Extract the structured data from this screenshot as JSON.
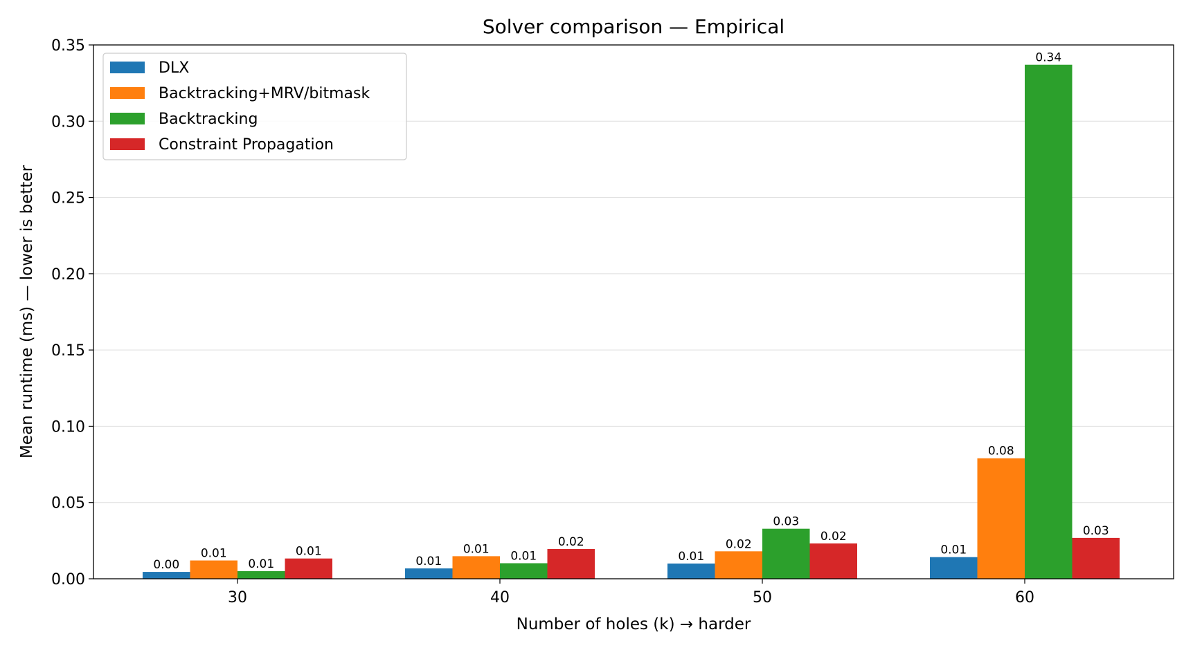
{
  "chart_data": {
    "type": "bar",
    "title": "Solver comparison — Empirical",
    "xlabel": "Number of holes (k) → harder",
    "ylabel": "Mean runtime (ms) — lower is better",
    "categories": [
      "30",
      "40",
      "50",
      "60"
    ],
    "ylim": [
      0,
      0.35
    ],
    "yticks": [
      "0.00",
      "0.05",
      "0.10",
      "0.15",
      "0.20",
      "0.25",
      "0.30",
      "0.35"
    ],
    "grid": "horizontal",
    "legend_position": "top-left",
    "series": [
      {
        "name": "DLX",
        "color": "#1f77b4",
        "values": [
          0.0045,
          0.0068,
          0.01,
          0.0142
        ],
        "labels": [
          "0.00",
          "0.01",
          "0.01",
          "0.01"
        ]
      },
      {
        "name": "Backtracking+MRV/bitmask",
        "color": "#ff7f0e",
        "values": [
          0.012,
          0.0148,
          0.018,
          0.079
        ],
        "labels": [
          "0.01",
          "0.01",
          "0.02",
          "0.08"
        ]
      },
      {
        "name": "Backtracking",
        "color": "#2ca02c",
        "values": [
          0.005,
          0.0102,
          0.0328,
          0.337
        ],
        "labels": [
          "0.01",
          "0.01",
          "0.03",
          "0.34"
        ]
      },
      {
        "name": "Constraint Propagation",
        "color": "#d62728",
        "values": [
          0.0133,
          0.0195,
          0.0232,
          0.0268
        ],
        "labels": [
          "0.01",
          "0.02",
          "0.02",
          "0.03"
        ]
      }
    ]
  }
}
